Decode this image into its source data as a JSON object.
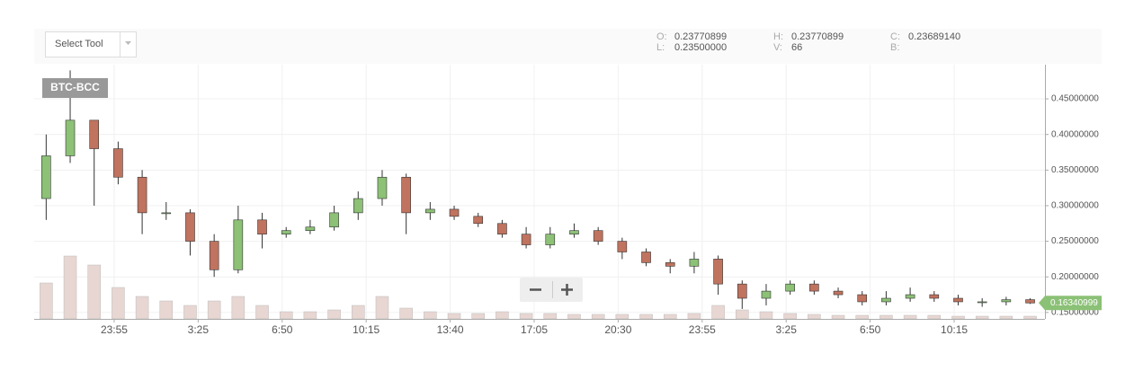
{
  "toolbar": {
    "select_tool": "Select Tool"
  },
  "ohlc_info": [
    {
      "label": "O:",
      "value": "0.23770899"
    },
    {
      "label": "L:",
      "value": "0.23500000"
    },
    {
      "label": "H:",
      "value": "0.23770899"
    },
    {
      "label": "V:",
      "value": "66"
    },
    {
      "label": "C:",
      "value": "0.23689140"
    },
    {
      "label": "B:"
    }
  ],
  "chart_data": {
    "type": "candlestick",
    "symbol": "BTC-BCC",
    "up_color": "#8cc176",
    "down_color": "#c0735e",
    "volume_color": "#e8d6d2",
    "grid": true,
    "x": [
      30,
      90,
      150,
      210,
      270,
      330,
      390,
      450,
      510,
      570,
      630,
      690,
      750,
      810,
      870,
      930,
      990,
      1050,
      1110,
      1170,
      1230,
      1290,
      1350,
      1410,
      1470,
      1530,
      1590,
      1650,
      1710,
      1770,
      1830,
      1890,
      1950,
      2010,
      2070,
      2130,
      2190,
      2250,
      2310,
      2370,
      2430,
      2490
    ],
    "open": [
      0.31,
      0.37,
      0.42,
      0.38,
      0.34,
      0.29,
      0.29,
      0.25,
      0.21,
      0.28,
      0.26,
      0.265,
      0.27,
      0.29,
      0.31,
      0.34,
      0.29,
      0.295,
      0.285,
      0.275,
      0.26,
      0.245,
      0.26,
      0.265,
      0.25,
      0.235,
      0.22,
      0.215,
      0.225,
      0.19,
      0.17,
      0.18,
      0.19,
      0.18,
      0.175,
      0.165,
      0.17,
      0.175,
      0.17,
      0.165,
      0.165,
      0.168
    ],
    "high": [
      0.4,
      0.49,
      0.42,
      0.39,
      0.35,
      0.305,
      0.295,
      0.26,
      0.3,
      0.29,
      0.27,
      0.28,
      0.3,
      0.32,
      0.35,
      0.345,
      0.305,
      0.3,
      0.29,
      0.28,
      0.27,
      0.27,
      0.275,
      0.27,
      0.255,
      0.24,
      0.225,
      0.235,
      0.23,
      0.195,
      0.19,
      0.195,
      0.195,
      0.185,
      0.18,
      0.18,
      0.185,
      0.18,
      0.175,
      0.17,
      0.172,
      0.17
    ],
    "low": [
      0.28,
      0.36,
      0.3,
      0.33,
      0.26,
      0.28,
      0.23,
      0.2,
      0.205,
      0.24,
      0.255,
      0.26,
      0.265,
      0.28,
      0.3,
      0.26,
      0.28,
      0.28,
      0.27,
      0.255,
      0.24,
      0.24,
      0.255,
      0.245,
      0.225,
      0.215,
      0.205,
      0.205,
      0.175,
      0.155,
      0.16,
      0.175,
      0.175,
      0.17,
      0.16,
      0.16,
      0.165,
      0.165,
      0.16,
      0.158,
      0.16,
      0.162
    ],
    "close": [
      0.37,
      0.42,
      0.38,
      0.34,
      0.29,
      0.29,
      0.25,
      0.21,
      0.28,
      0.26,
      0.265,
      0.27,
      0.29,
      0.31,
      0.34,
      0.29,
      0.295,
      0.285,
      0.275,
      0.26,
      0.245,
      0.26,
      0.265,
      0.25,
      0.235,
      0.22,
      0.215,
      0.225,
      0.19,
      0.17,
      0.18,
      0.19,
      0.18,
      0.175,
      0.165,
      0.17,
      0.175,
      0.17,
      0.165,
      0.165,
      0.168,
      0.1634
    ],
    "volume": [
      40,
      70,
      60,
      35,
      25,
      20,
      15,
      20,
      25,
      15,
      8,
      8,
      10,
      15,
      25,
      12,
      8,
      6,
      6,
      8,
      6,
      6,
      5,
      5,
      5,
      5,
      5,
      6,
      15,
      10,
      8,
      6,
      5,
      4,
      4,
      4,
      4,
      4,
      3,
      3,
      3,
      3
    ],
    "xlim": [
      0,
      2527
    ],
    "xticks": [
      {
        "value": 200,
        "label": "23:55"
      },
      {
        "value": 410,
        "label": "3:25"
      },
      {
        "value": 620,
        "label": "6:50"
      },
      {
        "value": 830,
        "label": "10:15"
      },
      {
        "value": 1040,
        "label": "13:40"
      },
      {
        "value": 1250,
        "label": "17:05"
      },
      {
        "value": 1460,
        "label": "20:30"
      },
      {
        "value": 1670,
        "label": "23:55"
      },
      {
        "value": 1880,
        "label": "3:25"
      },
      {
        "value": 2090,
        "label": "6:50"
      },
      {
        "value": 2300,
        "label": "10:15"
      }
    ],
    "ylim": [
      0.141,
      0.498
    ],
    "yticks": [
      {
        "value": 0.15,
        "label": "0.15000000"
      },
      {
        "value": 0.2,
        "label": "0.20000000"
      },
      {
        "value": 0.25,
        "label": "0.25000000"
      },
      {
        "value": 0.3,
        "label": "0.30000000"
      },
      {
        "value": 0.35,
        "label": "0.35000000"
      },
      {
        "value": 0.4,
        "label": "0.40000000"
      },
      {
        "value": 0.45,
        "label": "0.45000000"
      }
    ],
    "last_price": 0.16340999
  }
}
